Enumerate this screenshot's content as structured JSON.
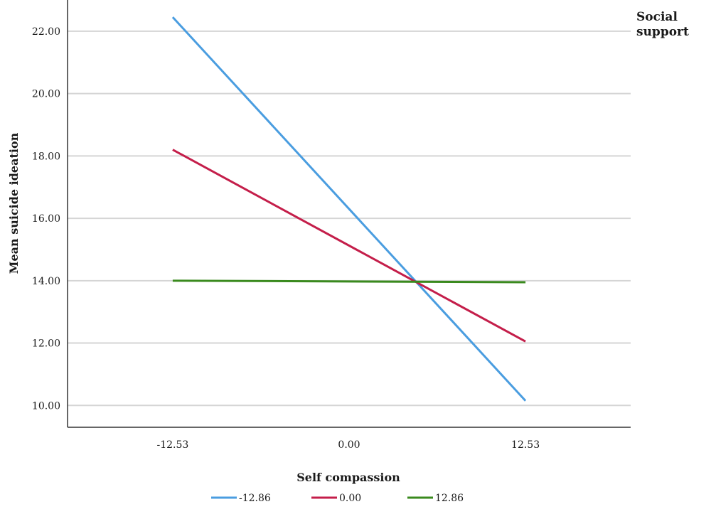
{
  "chart_data": {
    "type": "line",
    "title": "",
    "xlabel": "Self compassion",
    "ylabel": "Mean suicide ideation",
    "legend_title": "Social support",
    "legend_title_lines": [
      "Social",
      "support"
    ],
    "legend_position": "bottom",
    "categories": [
      "-12.53",
      "0.00",
      "12.53"
    ],
    "x": [
      -12.53,
      0.0,
      12.53
    ],
    "xlim": [
      -20,
      20
    ],
    "ylim": [
      9.3,
      23.0
    ],
    "yticks": [
      10.0,
      12.0,
      14.0,
      16.0,
      18.0,
      20.0,
      22.0
    ],
    "ytick_labels": [
      "10.00",
      "12.00",
      "14.00",
      "16.00",
      "18.00",
      "20.00",
      "22.00"
    ],
    "grid": true,
    "series": [
      {
        "name": "-12.86",
        "color": "#4a9de0",
        "x": [
          -12.53,
          12.53
        ],
        "values": [
          22.45,
          10.15
        ]
      },
      {
        "name": "0.00",
        "color": "#c41e4a",
        "x": [
          -12.53,
          12.53
        ],
        "values": [
          18.2,
          12.05
        ]
      },
      {
        "name": "12.86",
        "color": "#3a8a1e",
        "x": [
          -12.53,
          12.53
        ],
        "values": [
          14.0,
          13.95
        ]
      }
    ]
  }
}
